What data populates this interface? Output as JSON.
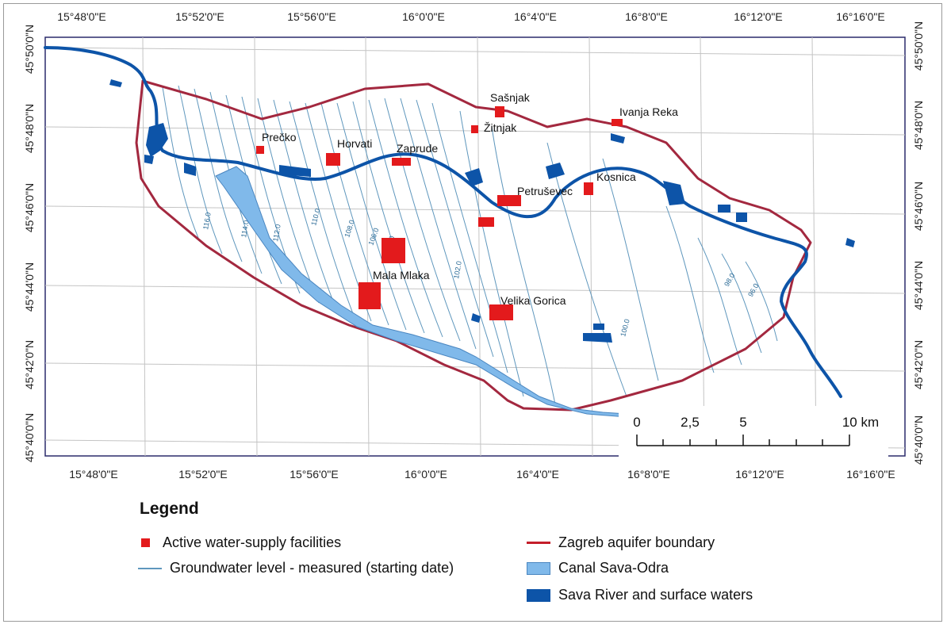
{
  "top_lon_labels": [
    "15°48'0\"E",
    "15°52'0\"E",
    "15°56'0\"E",
    "16°0'0\"E",
    "16°4'0\"E",
    "16°8'0\"E",
    "16°12'0\"E",
    "16°16'0\"E"
  ],
  "bottom_lon_labels": [
    "15°48'0\"E",
    "15°52'0\"E",
    "15°56'0\"E",
    "16°0'0\"E",
    "16°4'0\"E",
    "16°8'0\"E",
    "16°12'0\"E",
    "16°16'0\"E"
  ],
  "left_lat_labels": [
    "45°50'0\"N",
    "45°48'0\"N",
    "45°46'0\"N",
    "45°44'0\"N",
    "45°42'0\"N",
    "45°40'0\"N"
  ],
  "right_lat_labels": [
    "45°50'0\"N",
    "45°48'0\"N",
    "45°46'0\"N",
    "45°44'0\"N",
    "45°42'0\"N",
    "45°40'0\"N"
  ],
  "places": {
    "sasnjak": "Sašnjak",
    "zitnjak": "Žitnjak",
    "ivanja_reka": "Ivanja Reka",
    "precko": "Prečko",
    "horvati": "Horvati",
    "zaprude": "Zaprude",
    "kosnica": "Kosnica",
    "petrusevec": "Petruševec",
    "mala_mlaka": "Mala Mlaka",
    "velika_gorica": "Velika Gorica"
  },
  "contour_labels": [
    "116.0",
    "114.0",
    "112.0",
    "110.0",
    "108.0",
    "106.0",
    "104.0",
    "102.0",
    "100.0",
    "98.0",
    "96.0"
  ],
  "scale_bar": {
    "labels": [
      "0",
      "2,5",
      "5",
      "10 km"
    ]
  },
  "legend": {
    "title": "Legend",
    "facilities": "Active water-supply facilities",
    "groundwater": "Groundwater level - measured (starting date)",
    "boundary": "Zagreb aquifer boundary",
    "canal": "Canal Sava-Odra",
    "river": "Sava River and surface waters"
  },
  "colors": {
    "facility": "#e31a1c",
    "boundary": "#a3283f",
    "contour": "#5f97bd",
    "canal": "#80b9ea",
    "river": "#0d54a8",
    "graticule": "#c4c4c4",
    "map_frame": "#2b2b6b"
  },
  "icons": {
    "facility": "red-square",
    "groundwater": "thin-blue-line",
    "boundary": "red-line",
    "canal": "light-blue-box",
    "river": "dark-blue-box"
  }
}
